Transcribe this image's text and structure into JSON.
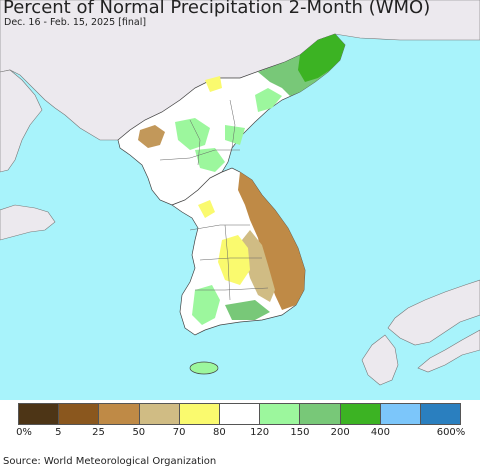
{
  "title": "Percent of Normal Precipitation 2-Month (WMO)",
  "subtitle": "Dec. 16 - Feb. 15, 2025 [final]",
  "source": "Source: World Meteorological Organization",
  "colors": {
    "ocean": "#a8f3fb",
    "foreign_land": "#ece9ee",
    "near_normal": "#ffffff"
  },
  "legend": {
    "colors": [
      "#4d3516",
      "#8a571e",
      "#bf8a46",
      "#d0bc84",
      "#fafa6e",
      "#ffffff",
      "#9cf79d",
      "#78c878",
      "#3cb323",
      "#7cc6fa",
      "#2a7fbf"
    ],
    "labels": [
      "0%",
      "5",
      "25",
      "50",
      "70",
      "80",
      "120",
      "150",
      "200",
      "400",
      "600%"
    ]
  }
}
